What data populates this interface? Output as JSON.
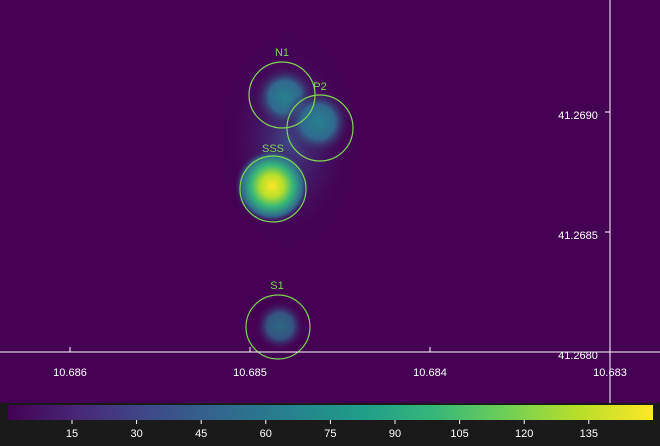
{
  "image": {
    "regions": [
      {
        "label": "N1"
      },
      {
        "label": "P2"
      },
      {
        "label": "SSS"
      },
      {
        "label": "S1"
      }
    ],
    "x_axis": {
      "ticks": [
        "10.686",
        "10.685",
        "10.684",
        "10.683"
      ]
    },
    "y_axis": {
      "ticks": [
        "41.2690",
        "41.2685",
        "41.2680"
      ]
    }
  },
  "colorbar": {
    "ticks": [
      15,
      30,
      45,
      60,
      75,
      90,
      105,
      120,
      135
    ]
  }
}
